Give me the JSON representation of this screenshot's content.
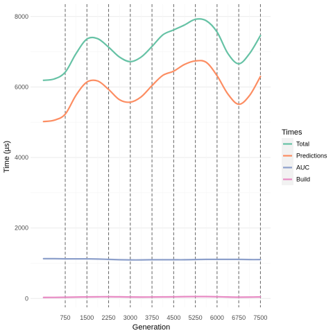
{
  "chart_data": {
    "type": "line",
    "xlabel": "Generation",
    "ylabel": "Time (µs)",
    "x_ticks": [
      750,
      1500,
      2250,
      3000,
      3750,
      4500,
      5250,
      6000,
      6750,
      7500
    ],
    "y_ticks": [
      0,
      2000,
      4000,
      6000,
      8000
    ],
    "x_tick_labels": [
      "750",
      "1500",
      "2250",
      "3000",
      "3750",
      "4500",
      "5250",
      "6000",
      "6750",
      "7500"
    ],
    "y_tick_labels": [
      "0",
      "2000",
      "4000",
      "6000",
      "8000"
    ],
    "xlim": [
      -450,
      7850
    ],
    "ylim": [
      -250,
      8350
    ],
    "vlines": [
      750,
      1500,
      2250,
      3000,
      3750,
      4500,
      5250,
      6000,
      6750,
      7500
    ],
    "grid": true,
    "legend": {
      "title": "Times",
      "position": "right"
    },
    "x": [
      0,
      375,
      750,
      1125,
      1500,
      1875,
      2250,
      2625,
      3000,
      3375,
      3750,
      4125,
      4500,
      4875,
      5250,
      5625,
      6000,
      6375,
      6750,
      7125,
      7500
    ],
    "series": [
      {
        "name": "Total",
        "color": "#66c2a5",
        "values": [
          6190,
          6230,
          6420,
          6950,
          7360,
          7370,
          7130,
          6850,
          6720,
          6850,
          7150,
          7480,
          7620,
          7760,
          7920,
          7880,
          7560,
          6950,
          6660,
          6950,
          7460
        ]
      },
      {
        "name": "Predictions",
        "color": "#fc8d62",
        "values": [
          5020,
          5060,
          5230,
          5770,
          6140,
          6170,
          5930,
          5640,
          5570,
          5720,
          6040,
          6330,
          6450,
          6640,
          6740,
          6700,
          6320,
          5800,
          5510,
          5760,
          6300
        ]
      },
      {
        "name": "AUC",
        "color": "#8da0cb",
        "values": [
          1130,
          1130,
          1125,
          1125,
          1125,
          1120,
          1110,
          1100,
          1095,
          1095,
          1100,
          1100,
          1100,
          1100,
          1105,
          1110,
          1110,
          1110,
          1110,
          1105,
          1105
        ]
      },
      {
        "name": "Build",
        "color": "#e78ac3",
        "values": [
          30,
          32,
          35,
          40,
          45,
          48,
          50,
          47,
          42,
          40,
          42,
          45,
          48,
          52,
          55,
          55,
          50,
          42,
          38,
          40,
          45
        ]
      }
    ]
  }
}
